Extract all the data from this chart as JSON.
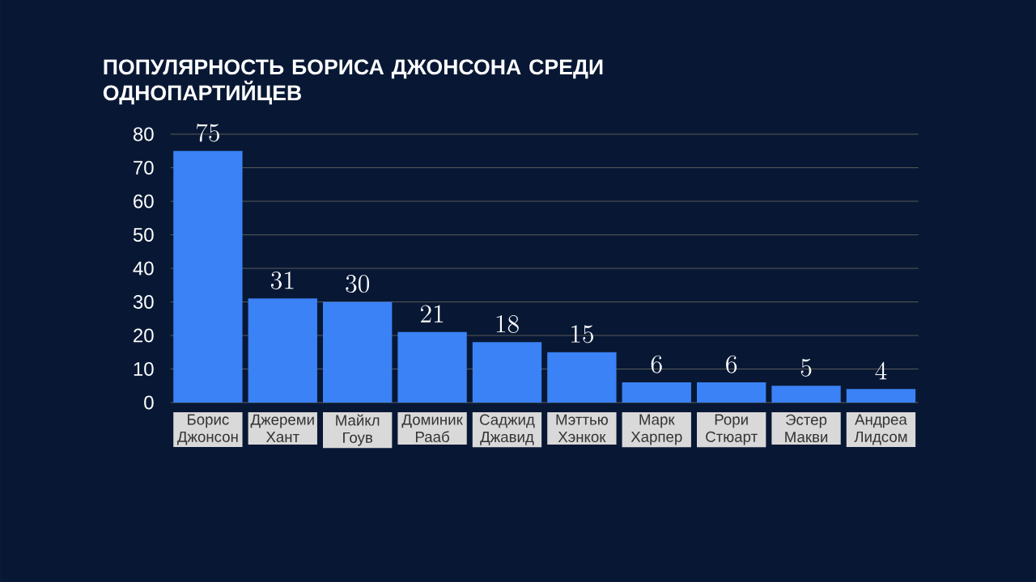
{
  "chart_data": {
    "type": "bar",
    "title": "ПОПУЛЯРНОСТЬ БОРИСА ДЖОНСОНА СРЕДИ ОДНОПАРТИЙЦЕВ",
    "categories": [
      "Борис Джонсон",
      "Джереми Хант",
      "Майкл Гоув",
      "Доминик Рааб",
      "Саджид Джавид",
      "Мэттью Хэнкок",
      "Марк Харпер",
      "Рори Стюарт",
      "Эстер Макви",
      "Андреа Лидсом"
    ],
    "values": [
      75,
      31,
      30,
      21,
      18,
      15,
      6,
      6,
      5,
      4
    ],
    "color": "#3b82f6",
    "ylim": [
      0,
      80
    ],
    "yticks": [
      0,
      10,
      20,
      30,
      40,
      50,
      60,
      70,
      80
    ],
    "grid": "y",
    "data_labels": true
  }
}
